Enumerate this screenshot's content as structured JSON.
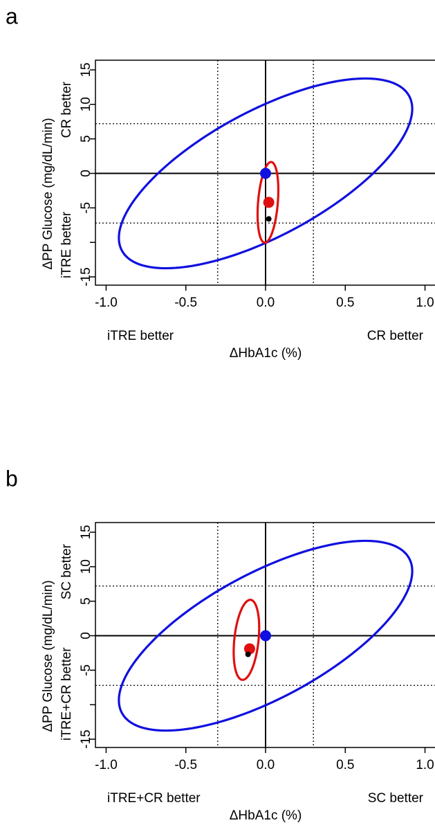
{
  "chart_data": [
    {
      "type": "scatter",
      "panel_label": "a",
      "xlabel": "ΔHbA1c (%)",
      "ylabel": "ΔPP Glucose (mg/dL/min)",
      "x_left_annotation": "iTRE better",
      "x_right_annotation": "CR better",
      "y_bottom_annotation": "iTRE better",
      "y_top_annotation": "CR better",
      "xlim": [
        -1.067,
        1.067
      ],
      "ylim": [
        -16.2,
        16.4
      ],
      "xticks": [
        {
          "value": -1.0,
          "label": "-1.0"
        },
        {
          "value": -0.5,
          "label": "-0.5"
        },
        {
          "value": 0,
          "label": "0.0"
        },
        0.5,
        {
          "value": 1.0,
          "label": "1.0"
        }
      ],
      "yticks": [
        -15,
        {
          "value": -10,
          "label": null
        },
        -5,
        0,
        5,
        10,
        15
      ],
      "solid_hlines": [
        0
      ],
      "solid_vlines": [
        0
      ],
      "dotted_hlines": [
        -7.2,
        7.2
      ],
      "dotted_vlines": [
        -0.3,
        0.3
      ],
      "ellipses": [
        {
          "color": "#1010e0",
          "center_x": 0,
          "center_y": 0,
          "x_radius": 0.92,
          "y_radius": 13.75,
          "correlation": 0.68
        },
        {
          "color": "#e01010",
          "center_x": 0.015,
          "center_y": -4.2,
          "x_radius": 0.065,
          "y_radius": 5.85,
          "correlation": 0.3
        }
      ],
      "series": [
        {
          "color": "#1010e0",
          "marker_size": "large",
          "x": [
            0
          ],
          "y": [
            0
          ]
        },
        {
          "color": "#e01010",
          "marker_size": "large",
          "x": [
            0.02
          ],
          "y": [
            -4.2
          ]
        },
        {
          "color": "#000000",
          "marker_size": "small",
          "x": [
            0.02
          ],
          "y": [
            -6.6
          ]
        }
      ]
    },
    {
      "type": "scatter",
      "panel_label": "b",
      "xlabel": "ΔHbA1c (%)",
      "ylabel": "ΔPP Glucose (mg/dL/min)",
      "x_left_annotation": "iTRE+CR better",
      "x_right_annotation": "SC better",
      "y_bottom_annotation": "iTRE+CR better",
      "y_top_annotation": "SC better",
      "xlim": [
        -1.067,
        1.067
      ],
      "ylim": [
        -16.2,
        16.4
      ],
      "xticks": [
        {
          "value": -1.0,
          "label": "-1.0"
        },
        {
          "value": -0.5,
          "label": "-0.5"
        },
        {
          "value": 0,
          "label": "0.0"
        },
        0.5,
        {
          "value": 1.0,
          "label": "1.0"
        }
      ],
      "yticks": [
        -15,
        {
          "value": -10,
          "label": null
        },
        -5,
        0,
        5,
        10,
        15
      ],
      "solid_hlines": [
        0
      ],
      "solid_vlines": [
        0
      ],
      "dotted_hlines": [
        -7.2,
        7.2
      ],
      "dotted_vlines": [
        -0.3,
        0.3
      ],
      "ellipses": [
        {
          "color": "#1010e0",
          "center_x": 0,
          "center_y": 0,
          "x_radius": 0.92,
          "y_radius": 13.75,
          "correlation": 0.68
        },
        {
          "color": "#e01010",
          "center_x": -0.12,
          "center_y": -0.6,
          "x_radius": 0.08,
          "y_radius": 5.8,
          "correlation": 0.3
        }
      ],
      "series": [
        {
          "color": "#1010e0",
          "marker_size": "large",
          "x": [
            0
          ],
          "y": [
            0
          ]
        },
        {
          "color": "#e01010",
          "marker_size": "large",
          "x": [
            -0.1
          ],
          "y": [
            -1.9
          ]
        },
        {
          "color": "#000000",
          "marker_size": "small",
          "x": [
            -0.11
          ],
          "y": [
            -2.7
          ]
        }
      ]
    }
  ]
}
